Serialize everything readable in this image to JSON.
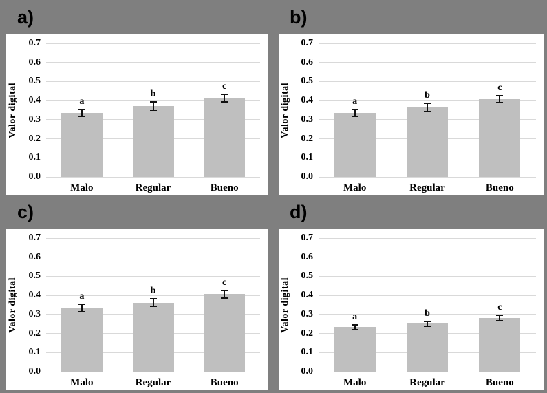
{
  "figure": {
    "background_color": "#7f7f7f",
    "panel_background": "#ffffff",
    "bar_color": "#bfbfbf",
    "gridline_color": "#d9d9d9",
    "error_bar_color": "#111111",
    "text_color": "#000000"
  },
  "chart_data": [
    {
      "type": "bar",
      "panel_label": "a)",
      "title": "",
      "xlabel": "",
      "ylabel": "Valor digital",
      "categories": [
        "Malo",
        "Regular",
        "Bueno"
      ],
      "values": [
        0.337,
        0.37,
        0.413
      ],
      "errors": [
        0.018,
        0.023,
        0.02
      ],
      "sig_letters": [
        "a",
        "b",
        "c"
      ],
      "ylim": [
        0.0,
        0.7
      ],
      "yticks": [
        "0.0",
        "0.1",
        "0.2",
        "0.3",
        "0.4",
        "0.5",
        "0.6",
        "0.7"
      ],
      "grid": true,
      "legend": "none"
    },
    {
      "type": "bar",
      "panel_label": "b)",
      "title": "",
      "xlabel": "",
      "ylabel": "Valor digital",
      "categories": [
        "Malo",
        "Regular",
        "Bueno"
      ],
      "values": [
        0.335,
        0.364,
        0.408
      ],
      "errors": [
        0.018,
        0.021,
        0.018
      ],
      "sig_letters": [
        "a",
        "b",
        "c"
      ],
      "ylim": [
        0.0,
        0.7
      ],
      "yticks": [
        "0.0",
        "0.1",
        "0.2",
        "0.3",
        "0.4",
        "0.5",
        "0.6",
        "0.7"
      ],
      "grid": true,
      "legend": "none"
    },
    {
      "type": "bar",
      "panel_label": "c)",
      "title": "",
      "xlabel": "",
      "ylabel": "Valor digital",
      "categories": [
        "Malo",
        "Regular",
        "Bueno"
      ],
      "values": [
        0.335,
        0.362,
        0.406
      ],
      "errors": [
        0.02,
        0.02,
        0.019
      ],
      "sig_letters": [
        "a",
        "b",
        "c"
      ],
      "ylim": [
        0.0,
        0.7
      ],
      "yticks": [
        "0.0",
        "0.1",
        "0.2",
        "0.3",
        "0.4",
        "0.5",
        "0.6",
        "0.7"
      ],
      "grid": true,
      "legend": "none"
    },
    {
      "type": "bar",
      "panel_label": "d)",
      "title": "",
      "xlabel": "",
      "ylabel": "Valor digital",
      "categories": [
        "Malo",
        "Regular",
        "Bueno"
      ],
      "values": [
        0.233,
        0.252,
        0.282
      ],
      "errors": [
        0.013,
        0.013,
        0.015
      ],
      "sig_letters": [
        "a",
        "b",
        "c"
      ],
      "ylim": [
        0.0,
        0.7
      ],
      "yticks": [
        "0.0",
        "0.1",
        "0.2",
        "0.3",
        "0.4",
        "0.5",
        "0.6",
        "0.7"
      ],
      "grid": true,
      "legend": "none"
    }
  ]
}
